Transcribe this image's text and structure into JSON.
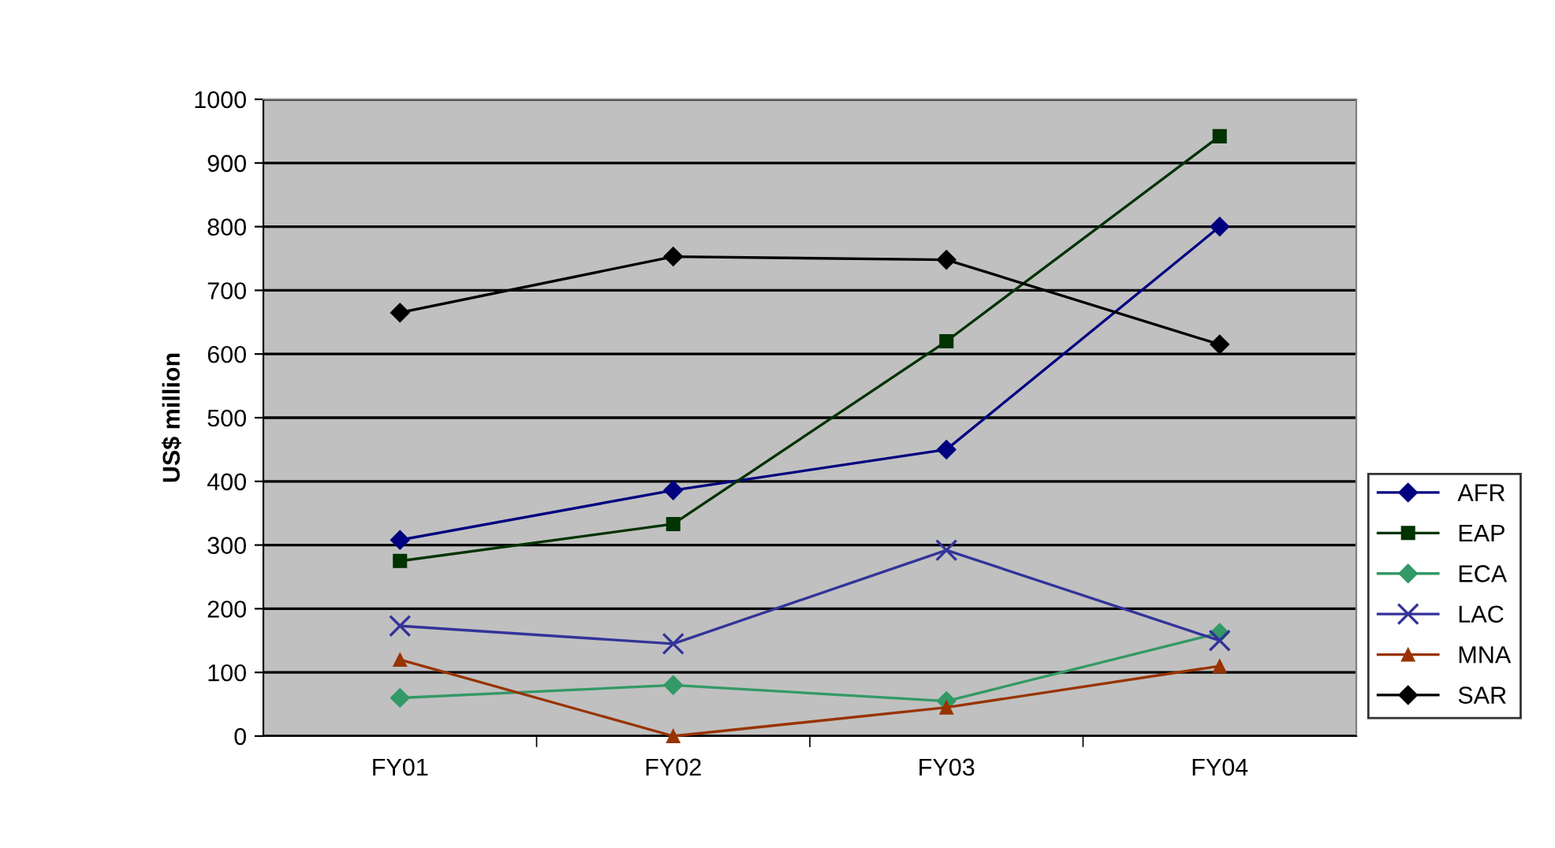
{
  "chart_data": {
    "type": "line",
    "ylabel": "US$ million",
    "categories": [
      "FY01",
      "FY02",
      "FY03",
      "FY04"
    ],
    "series": [
      {
        "name": "AFR",
        "color": "#000080",
        "marker": "diamond",
        "values": [
          308,
          386,
          450,
          800
        ]
      },
      {
        "name": "EAP",
        "color": "#003300",
        "marker": "square",
        "values": [
          275,
          333,
          620,
          942
        ]
      },
      {
        "name": "ECA",
        "color": "#339966",
        "marker": "diamond",
        "values": [
          60,
          80,
          55,
          162
        ]
      },
      {
        "name": "LAC",
        "color": "#333399",
        "marker": "cross",
        "values": [
          173,
          145,
          292,
          150
        ]
      },
      {
        "name": "MNA",
        "color": "#993300",
        "marker": "triangle",
        "values": [
          120,
          0,
          45,
          110
        ]
      },
      {
        "name": "SAR",
        "color": "#000000",
        "marker": "diamond",
        "values": [
          665,
          753,
          748,
          615
        ]
      }
    ],
    "ylim": [
      0,
      1000
    ],
    "yticks": [
      0,
      100,
      200,
      300,
      400,
      500,
      600,
      700,
      800,
      900,
      1000
    ],
    "grid": "y",
    "legend": "right"
  }
}
